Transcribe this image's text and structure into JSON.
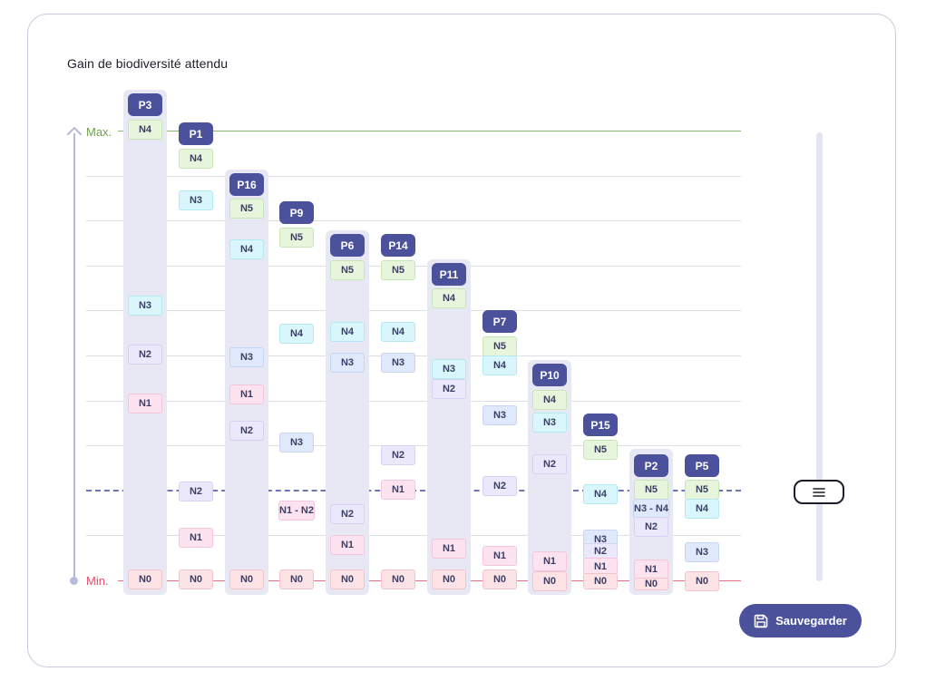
{
  "title": "Gain de biodiversité attendu",
  "axis": {
    "max_label": "Max.",
    "min_label": "Min."
  },
  "save_button": {
    "label": "Sauvegarder",
    "icon": "floppy-disk-icon"
  },
  "colors": {
    "accent": "#4b529b",
    "max_line": "#88b86a",
    "min_line": "#ee6e82",
    "threshold": "#6d76b4"
  },
  "slider": {
    "icon": "menu-lines-icon"
  },
  "columns": [
    {
      "plot": "P3",
      "levels": [
        {
          "label": "N4",
          "level": "N4"
        },
        {
          "label": "N3",
          "level": "N3a"
        },
        {
          "label": "N2",
          "level": "N2"
        },
        {
          "label": "N1",
          "level": "N1"
        },
        {
          "label": "N0",
          "level": "N0"
        }
      ]
    },
    {
      "plot": "P1",
      "levels": [
        {
          "label": "N4",
          "level": "N5"
        },
        {
          "label": "N3",
          "level": "N4"
        },
        {
          "label": "N2",
          "level": "N2"
        },
        {
          "label": "N1",
          "level": "N1"
        },
        {
          "label": "N0",
          "level": "N0"
        }
      ]
    },
    {
      "plot": "P16",
      "levels": [
        {
          "label": "N5",
          "level": "N5"
        },
        {
          "label": "N4",
          "level": "N4"
        },
        {
          "label": "N3",
          "level": "N3"
        },
        {
          "label": "N1",
          "level": "N1"
        },
        {
          "label": "N2",
          "level": "N2"
        },
        {
          "label": "N0",
          "level": "N0"
        }
      ]
    },
    {
      "plot": "P9",
      "levels": [
        {
          "label": "N5",
          "level": "N5"
        },
        {
          "label": "N4",
          "level": "N4"
        },
        {
          "label": "N3",
          "level": "N3"
        },
        {
          "label": "N1 - N2",
          "level": "N1"
        },
        {
          "label": "N0",
          "level": "N0"
        }
      ]
    },
    {
      "plot": "P6",
      "levels": [
        {
          "label": "N5",
          "level": "N5"
        },
        {
          "label": "N4",
          "level": "N4"
        },
        {
          "label": "N3",
          "level": "N3"
        },
        {
          "label": "N2",
          "level": "N2"
        },
        {
          "label": "N1",
          "level": "N1"
        },
        {
          "label": "N0",
          "level": "N0"
        }
      ]
    },
    {
      "plot": "P14",
      "levels": [
        {
          "label": "N5",
          "level": "N5"
        },
        {
          "label": "N4",
          "level": "N4"
        },
        {
          "label": "N3",
          "level": "N3"
        },
        {
          "label": "N2",
          "level": "N2"
        },
        {
          "label": "N1",
          "level": "N1"
        },
        {
          "label": "N0",
          "level": "N0"
        }
      ]
    },
    {
      "plot": "P11",
      "levels": [
        {
          "label": "N4",
          "level": "N5"
        },
        {
          "label": "N3",
          "level": "N4"
        },
        {
          "label": "N2",
          "level": "N2"
        },
        {
          "label": "N1",
          "level": "N1"
        },
        {
          "label": "N0",
          "level": "N0"
        }
      ]
    },
    {
      "plot": "P7",
      "levels": [
        {
          "label": "N5",
          "level": "N5"
        },
        {
          "label": "N4",
          "level": "N4"
        },
        {
          "label": "N3",
          "level": "N3"
        },
        {
          "label": "N2",
          "level": "N2"
        },
        {
          "label": "N1",
          "level": "N1"
        },
        {
          "label": "N0",
          "level": "N0"
        }
      ]
    },
    {
      "plot": "P10",
      "levels": [
        {
          "label": "N4",
          "level": "N5"
        },
        {
          "label": "N3",
          "level": "N4"
        },
        {
          "label": "N2",
          "level": "N2"
        },
        {
          "label": "N1",
          "level": "N1"
        },
        {
          "label": "N0",
          "level": "N0"
        }
      ]
    },
    {
      "plot": "P15",
      "levels": [
        {
          "label": "N5",
          "level": "N5"
        },
        {
          "label": "N4",
          "level": "N4"
        },
        {
          "label": "N3",
          "level": "N3"
        },
        {
          "label": "N2",
          "level": "N2"
        },
        {
          "label": "N1",
          "level": "N1"
        },
        {
          "label": "N0",
          "level": "N0"
        }
      ]
    },
    {
      "plot": "P2",
      "levels": [
        {
          "label": "N5",
          "level": "N5"
        },
        {
          "label": "N3 - N4",
          "level": "N3"
        },
        {
          "label": "N2",
          "level": "N2"
        },
        {
          "label": "N1",
          "level": "N1"
        },
        {
          "label": "N0",
          "level": "N0"
        }
      ]
    },
    {
      "plot": "P5",
      "levels": [
        {
          "label": "N5",
          "level": "N5"
        },
        {
          "label": "N4",
          "level": "N4"
        },
        {
          "label": "N3",
          "level": "N3"
        },
        {
          "label": "N0",
          "level": "N0"
        }
      ]
    }
  ]
}
